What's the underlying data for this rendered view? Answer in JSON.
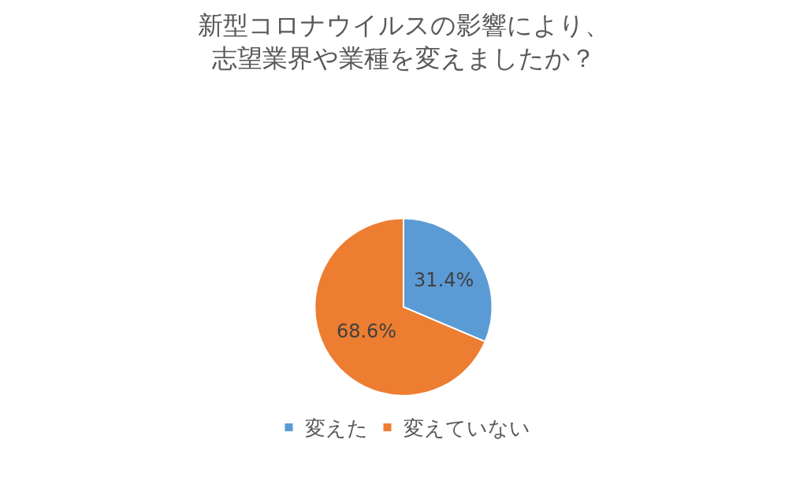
{
  "chart_data": {
    "type": "pie",
    "title": [
      "新型コロナウイルスの影響により、",
      "志望業界や業種を変えましたか？"
    ],
    "categories": [
      "変えた",
      "変えていない"
    ],
    "values": [
      31.4,
      68.6
    ],
    "colors": [
      "#5b9bd5",
      "#ed7d31"
    ],
    "value_labels": [
      "31.4%",
      "68.6%"
    ],
    "legend": "bottom"
  }
}
